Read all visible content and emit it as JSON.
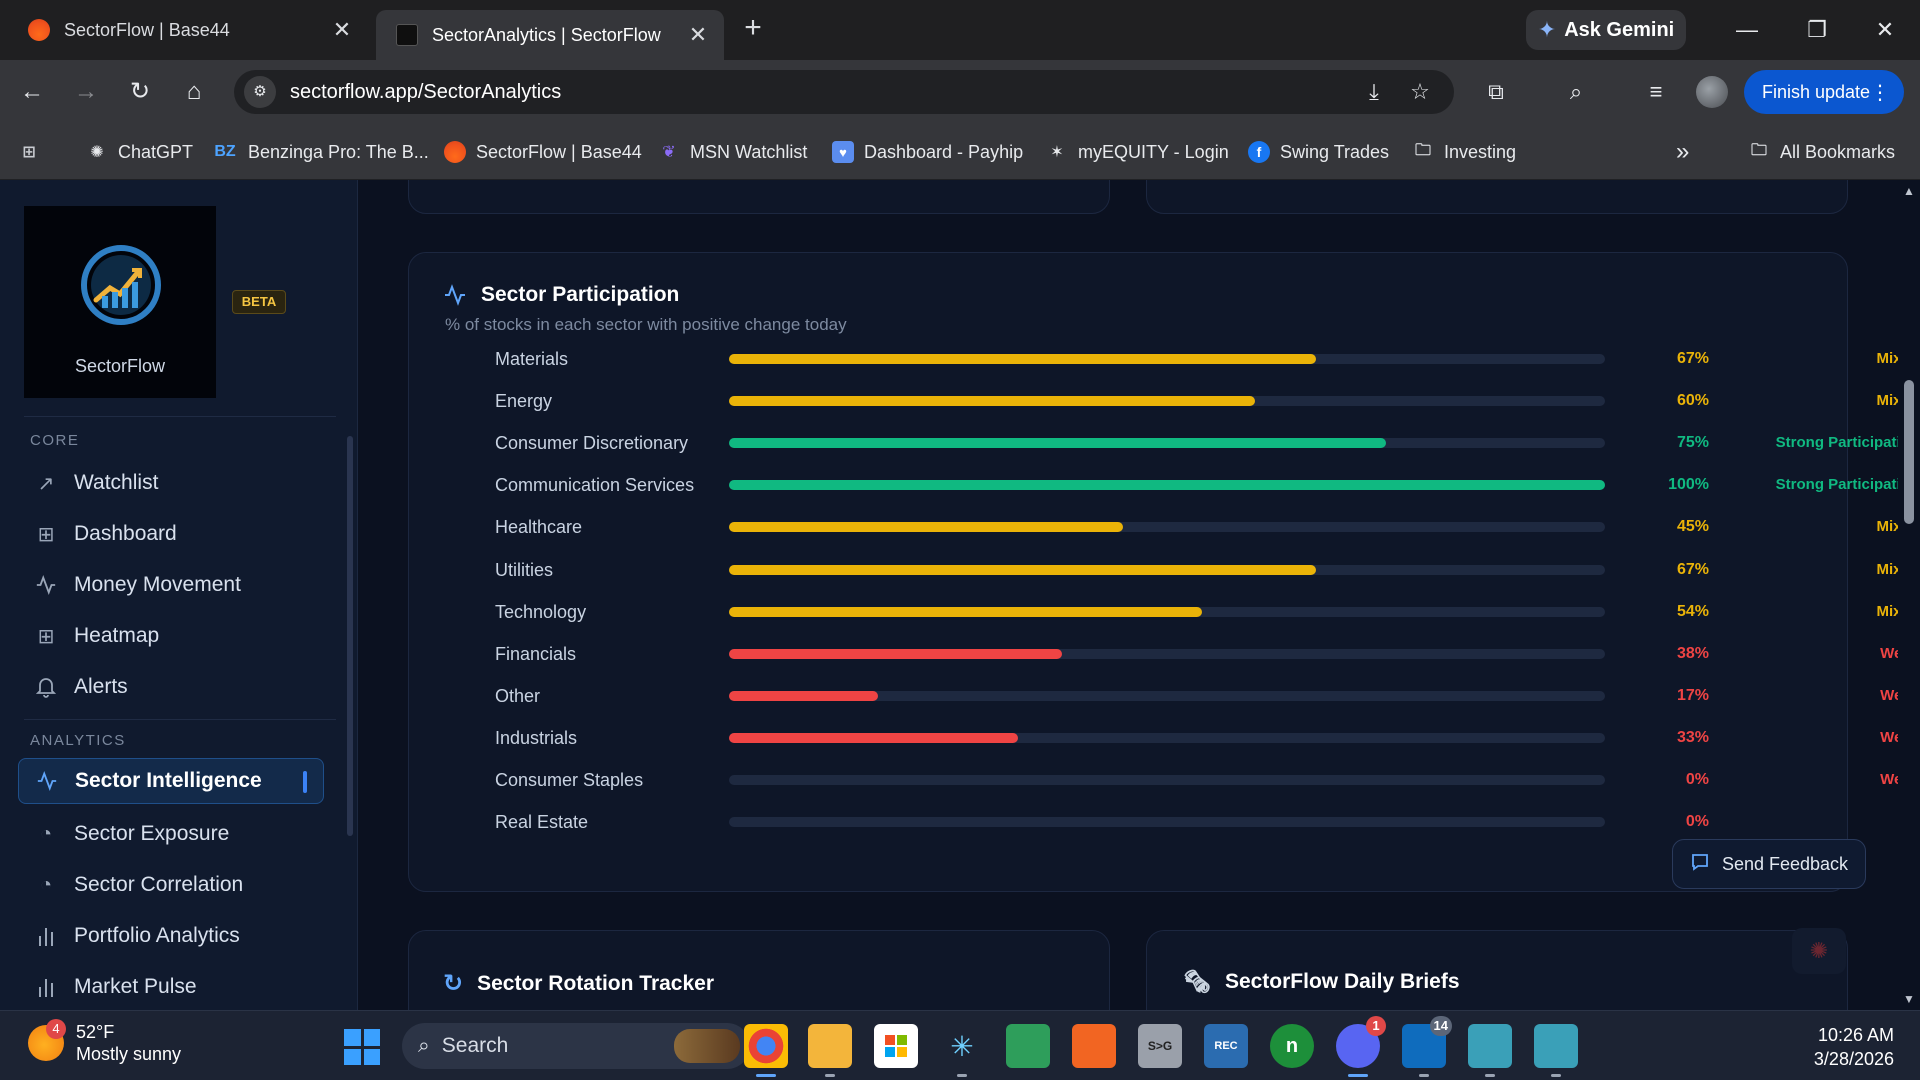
{
  "browser": {
    "tabs": [
      {
        "title": "SectorFlow | Base44",
        "active": false
      },
      {
        "title": "SectorAnalytics | SectorFlow",
        "active": true
      }
    ],
    "new_tab": "+",
    "ask_gemini": "Ask Gemini",
    "url": "sectorflow.app/SectorAnalytics",
    "finish_update": "Finish update",
    "bookmarks": [
      {
        "label": "ChatGPT"
      },
      {
        "label": "Benzinga Pro: The B...",
        "icon_text": "BZ"
      },
      {
        "label": "SectorFlow | Base44"
      },
      {
        "label": "MSN Watchlist"
      },
      {
        "label": "Dashboard - Payhip"
      },
      {
        "label": "myEQUITY - Login"
      },
      {
        "label": "Swing Trades"
      },
      {
        "label": "Investing"
      }
    ],
    "all_bookmarks": "All Bookmarks",
    "more": "»"
  },
  "sidebar": {
    "logo_text": "SectorFlow",
    "beta": "BETA",
    "sections": [
      {
        "heading": "CORE",
        "items": [
          {
            "label": "Watchlist",
            "icon": "trending-up-icon"
          },
          {
            "label": "Dashboard",
            "icon": "grid-icon"
          },
          {
            "label": "Money Movement",
            "icon": "activity-icon"
          },
          {
            "label": "Heatmap",
            "icon": "grid-icon"
          },
          {
            "label": "Alerts",
            "icon": "bell-icon"
          }
        ]
      },
      {
        "heading": "ANALYTICS",
        "items": [
          {
            "label": "Sector Intelligence",
            "icon": "activity-icon",
            "active": true
          },
          {
            "label": "Sector Exposure",
            "icon": "pie-icon"
          },
          {
            "label": "Sector Correlation",
            "icon": "pie-icon"
          },
          {
            "label": "Portfolio Analytics",
            "icon": "bar-chart-icon"
          },
          {
            "label": "Market Pulse",
            "icon": "bar-chart-icon"
          }
        ]
      }
    ]
  },
  "participation": {
    "title": "Sector Participation",
    "subtitle": "% of stocks in each sector with positive change today",
    "colors": {
      "Mixed": "#eab308",
      "Strong Participation": "#10b981",
      "Weak": "#ef4444"
    },
    "rows": [
      {
        "sector": "Materials",
        "value": 67,
        "pct": "67%",
        "status": "Mixed"
      },
      {
        "sector": "Energy",
        "value": 60,
        "pct": "60%",
        "status": "Mixed"
      },
      {
        "sector": "Consumer Discretionary",
        "value": 75,
        "pct": "75%",
        "status": "Strong Participation"
      },
      {
        "sector": "Communication Services",
        "value": 100,
        "pct": "100%",
        "status": "Strong Participation"
      },
      {
        "sector": "Healthcare",
        "value": 45,
        "pct": "45%",
        "status": "Mixed"
      },
      {
        "sector": "Utilities",
        "value": 67,
        "pct": "67%",
        "status": "Mixed"
      },
      {
        "sector": "Technology",
        "value": 54,
        "pct": "54%",
        "status": "Mixed"
      },
      {
        "sector": "Financials",
        "value": 38,
        "pct": "38%",
        "status": "Weak"
      },
      {
        "sector": "Other",
        "value": 17,
        "pct": "17%",
        "status": "Weak"
      },
      {
        "sector": "Industrials",
        "value": 33,
        "pct": "33%",
        "status": "Weak"
      },
      {
        "sector": "Consumer Staples",
        "value": 0,
        "pct": "0%",
        "status": "Weak"
      },
      {
        "sector": "Real Estate",
        "value": 0,
        "pct": "0%",
        "status": ""
      }
    ]
  },
  "cards": {
    "rotation_title": "Sector Rotation Tracker",
    "briefs_title": "SectorFlow Daily Briefs"
  },
  "feedback_label": "Send Feedback",
  "taskbar": {
    "weather_badge": "4",
    "temperature": "52°F",
    "condition": "Mostly sunny",
    "search": "Search",
    "discord_badge": "1",
    "outlook_badge": "14",
    "time": "10:26 AM",
    "date": "3/28/2026"
  }
}
